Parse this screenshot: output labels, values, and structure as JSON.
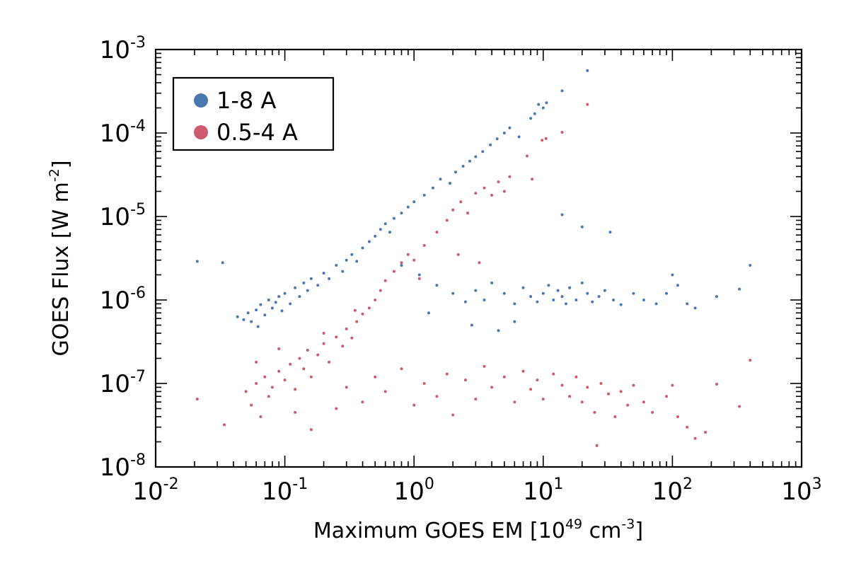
{
  "chart_data": {
    "type": "scatter",
    "title": "",
    "xscale": "log",
    "yscale": "log",
    "xlim": [
      0.01,
      1000
    ],
    "ylim": [
      1e-08,
      0.001
    ],
    "grid": false,
    "legend_position": "top-left",
    "xlabel": {
      "base": "Maximum GOES EM [10",
      "exp": "49",
      "mid": " cm",
      "exp2": "-3",
      "end": "]"
    },
    "ylabel": {
      "base": "GOES Flux [W m",
      "exp": "-2",
      "end": "]"
    },
    "xticks": [
      {
        "base": "10",
        "exp": "-2"
      },
      {
        "base": "10",
        "exp": "-1"
      },
      {
        "base": "10",
        "exp": "0"
      },
      {
        "base": "10",
        "exp": "1"
      },
      {
        "base": "10",
        "exp": "2"
      },
      {
        "base": "10",
        "exp": "3"
      }
    ],
    "yticks": [
      {
        "base": "10",
        "exp": "-8"
      },
      {
        "base": "10",
        "exp": "-7"
      },
      {
        "base": "10",
        "exp": "-6"
      },
      {
        "base": "10",
        "exp": "-5"
      },
      {
        "base": "10",
        "exp": "-4"
      },
      {
        "base": "10",
        "exp": "-3"
      }
    ],
    "series": [
      {
        "name": "1-8 A",
        "color": "#4a78b0",
        "points": [
          [
            0.021,
            2.9e-06
          ],
          [
            0.033,
            2.8e-06
          ],
          [
            0.043,
            6.3e-07
          ],
          [
            0.048,
            5.8e-07
          ],
          [
            0.052,
            7e-07
          ],
          [
            0.055,
            5.5e-07
          ],
          [
            0.06,
            7.6e-07
          ],
          [
            0.062,
            4.8e-07
          ],
          [
            0.065,
            8.8e-07
          ],
          [
            0.07,
            6.6e-07
          ],
          [
            0.075,
            1e-06
          ],
          [
            0.08,
            8e-07
          ],
          [
            0.085,
            9.4e-07
          ],
          [
            0.09,
            1.1e-06
          ],
          [
            0.095,
            7.4e-07
          ],
          [
            0.1,
            1.2e-06
          ],
          [
            0.11,
            9e-07
          ],
          [
            0.12,
            1.4e-06
          ],
          [
            0.13,
            1.1e-06
          ],
          [
            0.14,
            1.6e-06
          ],
          [
            0.15,
            1.3e-06
          ],
          [
            0.16,
            1.8e-06
          ],
          [
            0.18,
            1.5e-06
          ],
          [
            0.2,
            2.1e-06
          ],
          [
            0.22,
            1.8e-06
          ],
          [
            0.25,
            2.6e-06
          ],
          [
            0.28,
            2.2e-06
          ],
          [
            0.3,
            3e-06
          ],
          [
            0.33,
            3.5e-06
          ],
          [
            0.36,
            2.9e-06
          ],
          [
            0.4,
            4.2e-06
          ],
          [
            0.45,
            5e-06
          ],
          [
            0.5,
            5.8e-06
          ],
          [
            0.55,
            7e-06
          ],
          [
            0.6,
            8.2e-06
          ],
          [
            0.65,
            6.5e-06
          ],
          [
            0.7,
            9.5e-06
          ],
          [
            0.8,
            1.1e-05
          ],
          [
            0.9,
            1.3e-05
          ],
          [
            1.0,
            1.5e-05
          ],
          [
            1.2,
            1.8e-05
          ],
          [
            1.4,
            2.2e-05
          ],
          [
            1.6,
            2.8e-05
          ],
          [
            1.9,
            2.5e-05
          ],
          [
            2.1,
            3.4e-05
          ],
          [
            2.4,
            4e-05
          ],
          [
            2.7,
            4.6e-05
          ],
          [
            3.0,
            5.2e-05
          ],
          [
            3.4,
            6e-05
          ],
          [
            3.9,
            7.2e-05
          ],
          [
            4.4,
            8.5e-05
          ],
          [
            5.0,
            0.0001
          ],
          [
            5.5,
            0.000115
          ],
          [
            6.5,
            9e-05
          ],
          [
            8.0,
            0.00015
          ],
          [
            8.6,
            0.00017
          ],
          [
            9.2,
            0.00022
          ],
          [
            10.0,
            0.0002
          ],
          [
            10.6,
            0.00023
          ],
          [
            14.0,
            0.00032
          ],
          [
            22.0,
            0.00056
          ],
          [
            14.0,
            1.05e-05
          ],
          [
            20.0,
            7.5e-06
          ],
          [
            33.0,
            6.5e-06
          ],
          [
            0.8,
            2.6e-06
          ],
          [
            1.1,
            2e-06
          ],
          [
            1.5,
            1.5e-06
          ],
          [
            2.0,
            1.2e-06
          ],
          [
            2.5,
            9.5e-07
          ],
          [
            3.0,
            1.3e-06
          ],
          [
            3.5,
            1e-06
          ],
          [
            4.0,
            1.6e-06
          ],
          [
            5.0,
            1.2e-06
          ],
          [
            6.0,
            9e-07
          ],
          [
            7.0,
            1.4e-06
          ],
          [
            8.0,
            1.1e-06
          ],
          [
            9.0,
            9.5e-07
          ],
          [
            10.0,
            1.2e-06
          ],
          [
            11.0,
            1.5e-06
          ],
          [
            12.0,
            1e-06
          ],
          [
            13.0,
            1.3e-06
          ],
          [
            14.0,
            1.1e-06
          ],
          [
            15.0,
            9e-07
          ],
          [
            16.0,
            1.4e-06
          ],
          [
            18.0,
            1e-06
          ],
          [
            20.0,
            1.6e-06
          ],
          [
            22.0,
            1.2e-06
          ],
          [
            24.0,
            9.5e-07
          ],
          [
            27.0,
            1.1e-06
          ],
          [
            30.0,
            1.3e-06
          ],
          [
            35.0,
            1e-06
          ],
          [
            40.0,
            8.8e-07
          ],
          [
            50.0,
            1.2e-06
          ],
          [
            60.0,
            1e-06
          ],
          [
            75.0,
            9e-07
          ],
          [
            90.0,
            1.2e-06
          ],
          [
            100.0,
            2e-06
          ],
          [
            110.0,
            1.5e-06
          ],
          [
            130.0,
            9e-07
          ],
          [
            150.0,
            8e-07
          ],
          [
            220.0,
            1.1e-06
          ],
          [
            330.0,
            1.35e-06
          ],
          [
            400.0,
            2.6e-06
          ],
          [
            2.8,
            5e-07
          ],
          [
            4.5,
            4.3e-07
          ],
          [
            6.0,
            5.5e-07
          ],
          [
            1.3,
            7e-07
          ]
        ]
      },
      {
        "name": "0.5-4 A",
        "color": "#cc5b6f",
        "points": [
          [
            0.021,
            6.5e-08
          ],
          [
            0.034,
            3.2e-08
          ],
          [
            0.05,
            8e-08
          ],
          [
            0.055,
            5.5e-08
          ],
          [
            0.06,
            1e-07
          ],
          [
            0.065,
            4e-08
          ],
          [
            0.07,
            1.2e-07
          ],
          [
            0.075,
            7e-08
          ],
          [
            0.08,
            9e-08
          ],
          [
            0.09,
            1.4e-07
          ],
          [
            0.1,
            1.1e-07
          ],
          [
            0.11,
            1.7e-07
          ],
          [
            0.12,
            8.5e-08
          ],
          [
            0.13,
            2e-07
          ],
          [
            0.14,
            1.5e-07
          ],
          [
            0.15,
            2.5e-07
          ],
          [
            0.16,
            1.2e-07
          ],
          [
            0.18,
            2.2e-07
          ],
          [
            0.2,
            3e-07
          ],
          [
            0.22,
            1.8e-07
          ],
          [
            0.25,
            3.6e-07
          ],
          [
            0.28,
            2.8e-07
          ],
          [
            0.3,
            4.5e-07
          ],
          [
            0.33,
            3.5e-07
          ],
          [
            0.36,
            5.5e-07
          ],
          [
            0.4,
            6.8e-07
          ],
          [
            0.45,
            8e-07
          ],
          [
            0.5,
            1e-06
          ],
          [
            0.55,
            1.3e-06
          ],
          [
            0.6,
            1.7e-06
          ],
          [
            0.7,
            2.2e-06
          ],
          [
            0.8,
            2.8e-06
          ],
          [
            0.9,
            3.5e-06
          ],
          [
            1.0,
            3e-06
          ],
          [
            1.2,
            4.5e-06
          ],
          [
            1.5,
            6.5e-06
          ],
          [
            1.8,
            9e-06
          ],
          [
            2.0,
            1.2e-05
          ],
          [
            2.3,
            1.5e-05
          ],
          [
            2.6,
            1.1e-05
          ],
          [
            3.0,
            1.9e-05
          ],
          [
            3.5,
            2.2e-05
          ],
          [
            4.0,
            1.8e-05
          ],
          [
            4.5,
            2.6e-05
          ],
          [
            5.0,
            2e-05
          ],
          [
            5.5,
            3e-05
          ],
          [
            7.5,
            5.3e-05
          ],
          [
            8.2,
            2.8e-05
          ],
          [
            9.8,
            8.2e-05
          ],
          [
            10.5,
            8.6e-05
          ],
          [
            14.0,
            0.000102
          ],
          [
            22.0,
            0.00022
          ],
          [
            0.12,
            4.5e-08
          ],
          [
            0.16,
            2.8e-08
          ],
          [
            0.25,
            5e-08
          ],
          [
            0.3,
            9e-08
          ],
          [
            0.4,
            6e-08
          ],
          [
            0.5,
            1.2e-07
          ],
          [
            0.6,
            8e-08
          ],
          [
            0.8,
            1.5e-07
          ],
          [
            1.0,
            5.5e-08
          ],
          [
            1.2,
            1e-07
          ],
          [
            1.5,
            7e-08
          ],
          [
            1.8,
            1.3e-07
          ],
          [
            2.0,
            4.2e-08
          ],
          [
            2.5,
            1.1e-07
          ],
          [
            3.0,
            6.5e-08
          ],
          [
            3.5,
            1.6e-07
          ],
          [
            4.0,
            9e-08
          ],
          [
            5.0,
            1.2e-07
          ],
          [
            6.0,
            6e-08
          ],
          [
            7.0,
            1.4e-07
          ],
          [
            8.0,
            8.5e-08
          ],
          [
            9.0,
            1.1e-07
          ],
          [
            10.0,
            6.5e-08
          ],
          [
            12.0,
            1.3e-07
          ],
          [
            14.0,
            9.5e-08
          ],
          [
            16.0,
            7e-08
          ],
          [
            18.0,
            1.2e-07
          ],
          [
            20.0,
            6e-08
          ],
          [
            22.0,
            9e-08
          ],
          [
            25.0,
            4.5e-08
          ],
          [
            28.0,
            1e-07
          ],
          [
            32.0,
            7.5e-08
          ],
          [
            36.0,
            4e-08
          ],
          [
            40.0,
            8e-08
          ],
          [
            45.0,
            5.5e-08
          ],
          [
            50.0,
            9.5e-08
          ],
          [
            60.0,
            6e-08
          ],
          [
            70.0,
            4.5e-08
          ],
          [
            90.0,
            7e-08
          ],
          [
            100.0,
            9.5e-08
          ],
          [
            110.0,
            4e-08
          ],
          [
            130.0,
            3e-08
          ],
          [
            150.0,
            2.2e-08
          ],
          [
            180.0,
            2.6e-08
          ],
          [
            220.0,
            9.8e-08
          ],
          [
            330.0,
            5.3e-08
          ],
          [
            400.0,
            1.9e-07
          ],
          [
            26.0,
            1.8e-08
          ],
          [
            0.06,
            1.8e-07
          ],
          [
            0.09,
            2.6e-07
          ],
          [
            0.2,
            4e-07
          ],
          [
            0.35,
            7.5e-07
          ],
          [
            1.1,
            1.8e-06
          ],
          [
            2.2,
            3.5e-06
          ],
          [
            3.2,
            2.8e-06
          ]
        ]
      }
    ]
  }
}
